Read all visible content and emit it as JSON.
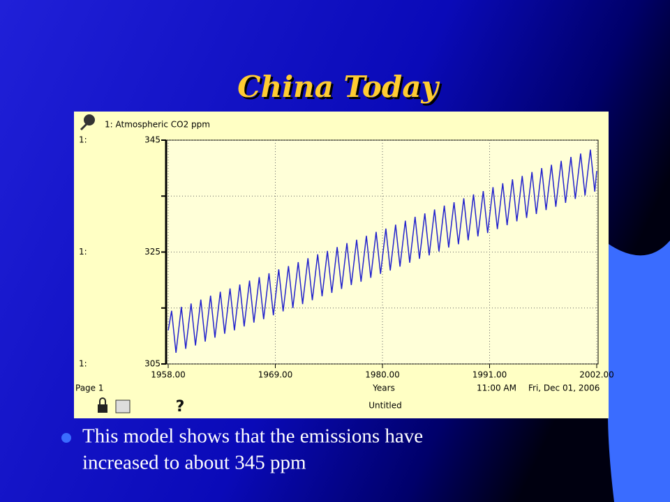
{
  "slide": {
    "title": "China Today",
    "bullet": [
      "This model shows that the emissions have",
      "increased to about 345 ppm"
    ]
  },
  "chart_data": {
    "type": "line",
    "series": [
      {
        "name": "1: Atmospheric CO2 ppm",
        "color": "#2222cc",
        "values": [
          311,
          314.5,
          307,
          315.2,
          307.7,
          315.8,
          308.3,
          316.5,
          309,
          317.2,
          309.7,
          317.9,
          310.4,
          318.5,
          311,
          319.2,
          311.7,
          319.9,
          312.4,
          320.5,
          313,
          321.2,
          313.7,
          321.9,
          314.4,
          322.5,
          315,
          323.2,
          315.7,
          323.9,
          316.4,
          324.6,
          317.1,
          325.2,
          317.7,
          325.9,
          318.4,
          326.6,
          319.1,
          327.2,
          319.7,
          327.9,
          320.4,
          328.6,
          321.1,
          329.2,
          321.7,
          329.9,
          322.4,
          330.6,
          323.1,
          331.3,
          323.8,
          331.9,
          324.4,
          332.6,
          325.1,
          333.3,
          325.8,
          333.9,
          326.4,
          334.6,
          327.1,
          335.3,
          327.8,
          335.9,
          328.4,
          336.6,
          329.1,
          337.3,
          329.8,
          338,
          330.5,
          338.6,
          331.1,
          339.3,
          331.8,
          340,
          332.5,
          340.6,
          333.1,
          341.3,
          333.8,
          342,
          334.5,
          342.6,
          335.1,
          343.3,
          335.8,
          339.5
        ]
      }
    ],
    "x": [
      1958,
      1958.35,
      1958.8,
      1959.35,
      1959.8,
      1960.35,
      1960.8,
      1961.35,
      1961.8,
      1962.35,
      1962.8,
      1963.35,
      1963.8,
      1964.35,
      1964.8,
      1965.35,
      1965.8,
      1966.35,
      1966.8,
      1967.35,
      1967.8,
      1968.35,
      1968.8,
      1969.35,
      1969.8,
      1970.35,
      1970.8,
      1971.35,
      1971.8,
      1972.35,
      1972.8,
      1973.35,
      1973.8,
      1974.35,
      1974.8,
      1975.35,
      1975.8,
      1976.35,
      1976.8,
      1977.35,
      1977.8,
      1978.35,
      1978.8,
      1979.35,
      1979.8,
      1980.35,
      1980.8,
      1981.35,
      1981.8,
      1982.35,
      1982.8,
      1983.35,
      1983.8,
      1984.35,
      1984.8,
      1985.35,
      1985.8,
      1986.35,
      1986.8,
      1987.35,
      1987.8,
      1988.35,
      1988.8,
      1989.35,
      1989.8,
      1990.35,
      1990.8,
      1991.35,
      1991.8,
      1992.35,
      1992.8,
      1993.35,
      1993.8,
      1994.35,
      1994.8,
      1995.35,
      1995.8,
      1996.35,
      1996.8,
      1997.35,
      1997.8,
      1998.35,
      1998.8,
      1999.35,
      1999.8,
      2000.35,
      2000.8,
      2001.35,
      2001.8,
      2002
    ],
    "xlim": [
      1958,
      2002
    ],
    "xticks": [
      {
        "value": 1958,
        "label": "1958.00"
      },
      {
        "value": 1969,
        "label": "1969.00"
      },
      {
        "value": 1980,
        "label": "1980.00"
      },
      {
        "value": 1991,
        "label": "1991.00"
      },
      {
        "value": 2002,
        "label": "2002.00"
      }
    ],
    "ylim": [
      305,
      345
    ],
    "yticks": [
      305,
      325,
      345
    ],
    "yminorticks": [
      315,
      335
    ],
    "axis_prefix": "1:",
    "xlabel": "Years",
    "grid": true,
    "footer": {
      "page": "Page 1",
      "time": "11:00 AM",
      "date": "Fri, Dec 01, 2006",
      "name": "Untitled"
    }
  }
}
